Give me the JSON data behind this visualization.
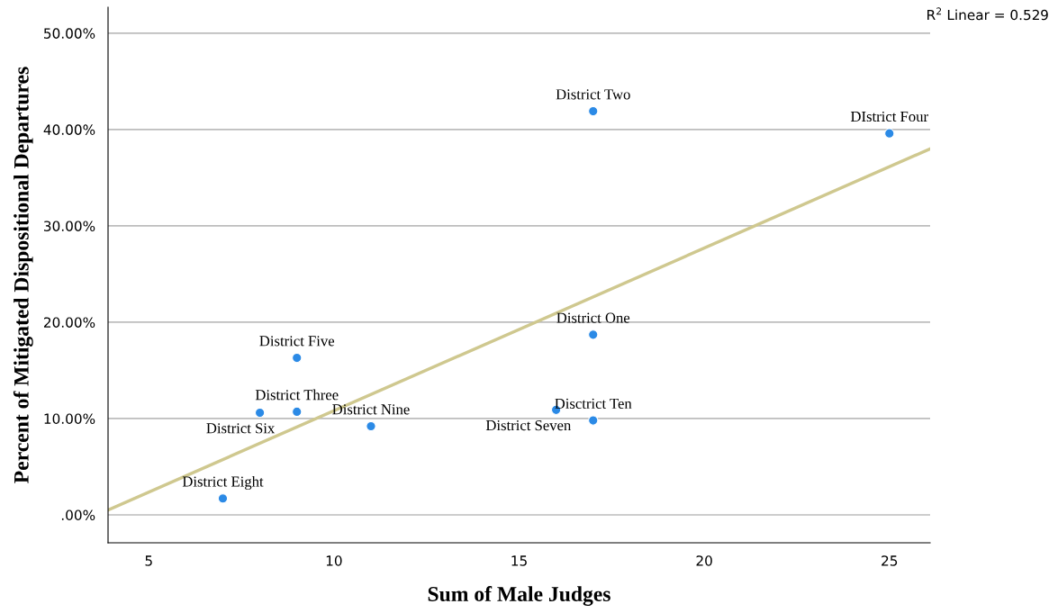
{
  "chart_data": {
    "type": "scatter",
    "xlabel": "Sum of Male Judges",
    "ylabel": "Percent of Mitigated Dispositional Departures",
    "xlim": [
      3.9,
      26.1
    ],
    "xticks": [
      5,
      10,
      15,
      20,
      25
    ],
    "ylim": [
      -2.9,
      52.7
    ],
    "yticks": [
      {
        "value": 0,
        "label": ".00%"
      },
      {
        "value": 10,
        "label": "10.00%"
      },
      {
        "value": 20,
        "label": "20.00%"
      },
      {
        "value": 30,
        "label": "30.00%"
      },
      {
        "value": 40,
        "label": "40.00%"
      },
      {
        "value": 50,
        "label": "50.00%"
      }
    ],
    "grid": "y",
    "legend": false,
    "series": [
      {
        "marker": "circle",
        "color": "#2b8ae6",
        "x": [
          17,
          25,
          17,
          9,
          9,
          8,
          11,
          16,
          17,
          7
        ],
        "values": [
          41.9,
          39.6,
          18.7,
          16.3,
          10.7,
          10.6,
          9.2,
          10.9,
          9.8,
          1.7
        ]
      },
      {
        "type": "line",
        "color": "#cfc88f",
        "x": [
          3.9,
          26.1
        ],
        "values": [
          0.5,
          38.0
        ]
      }
    ],
    "annotations": [
      {
        "text": "District Two",
        "x": 17,
        "y": 41.9
      },
      {
        "text": "DIstrict Four",
        "x": 25,
        "y": 39.6
      },
      {
        "text": "District One",
        "x": 17,
        "y": 18.7
      },
      {
        "text": "District Five",
        "x": 9,
        "y": 16.3
      },
      {
        "text": "District Three",
        "x": 9,
        "y": 10.7
      },
      {
        "text": "District Six",
        "x": 8,
        "y": 10.6
      },
      {
        "text": "District Nine",
        "x": 11,
        "y": 9.2
      },
      {
        "text": "District Seven",
        "x": 16,
        "y": 10.9
      },
      {
        "text": "Disctrict Ten",
        "x": 17,
        "y": 9.8
      },
      {
        "text": "District Eight",
        "x": 7,
        "y": 1.7
      },
      "R$^{2}$ Linear = 0.529"
    ]
  }
}
